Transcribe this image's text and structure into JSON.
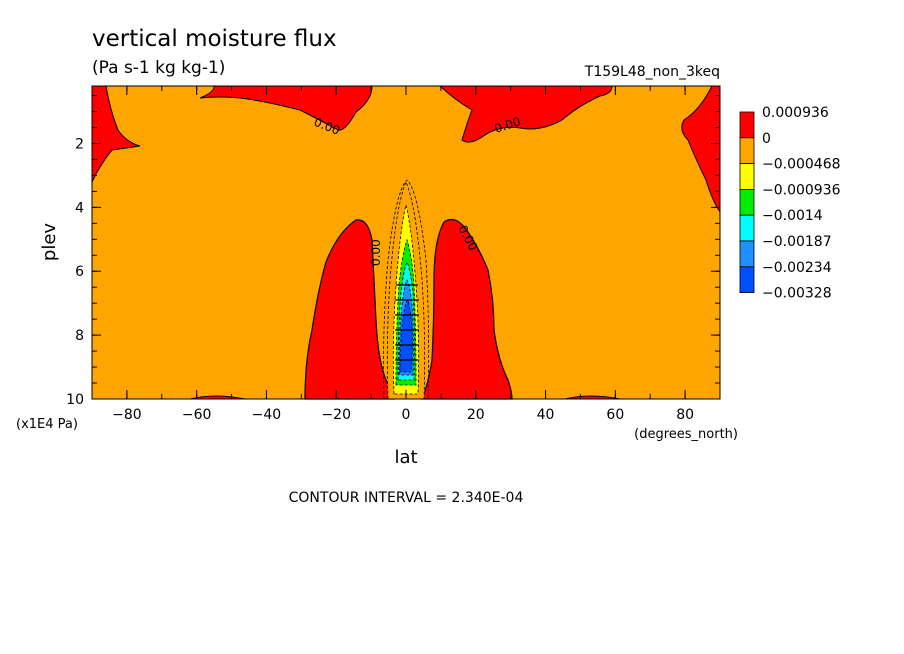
{
  "chart_data": {
    "type": "heatmap",
    "title": "vertical moisture flux",
    "subtitle": "(Pa s-1 kg kg-1)",
    "run_label": "T159L48_non_3keq",
    "xlabel": "lat",
    "x_units": "(degrees_north)",
    "ylabel": "plev",
    "y_units": "(x1E4 Pa)",
    "xlim": [
      -90,
      90
    ],
    "ylim": [
      10,
      0.2
    ],
    "x_ticks": [
      -80,
      -60,
      -40,
      -20,
      0,
      20,
      40,
      60,
      80
    ],
    "y_ticks": [
      2,
      4,
      6,
      8,
      10
    ],
    "contour_interval": "CONTOUR INTERVAL = 2.340E-04",
    "contour_label": "0.00",
    "legend": {
      "placement": "right",
      "levels": [
        "0.000936",
        "0",
        "−0.000468",
        "−0.000936",
        "−0.0014",
        "−0.00187",
        "−0.00234",
        "−0.00328"
      ],
      "colors": [
        "#ff0000",
        "#ffa500",
        "#ffff00",
        "#00ee00",
        "#00ffff",
        "#1e90ff",
        "#0050ff"
      ]
    },
    "regions": [
      {
        "name": "positive-band-south",
        "value_range": "0 to 0.000936",
        "color": "#ff0000",
        "lat_range": [
          -28,
          -5
        ],
        "plev_range": [
          4.3,
          10
        ]
      },
      {
        "name": "positive-band-north",
        "value_range": "0 to 0.000936",
        "color": "#ff0000",
        "lat_range": [
          8,
          30
        ],
        "plev_range": [
          4.3,
          10
        ]
      },
      {
        "name": "equatorial-minimum",
        "value_range": "-0.00328 to -0.000468",
        "color": "#0050ff",
        "lat_range": [
          -5,
          5
        ],
        "plev_range": [
          3.2,
          10
        ]
      }
    ]
  }
}
